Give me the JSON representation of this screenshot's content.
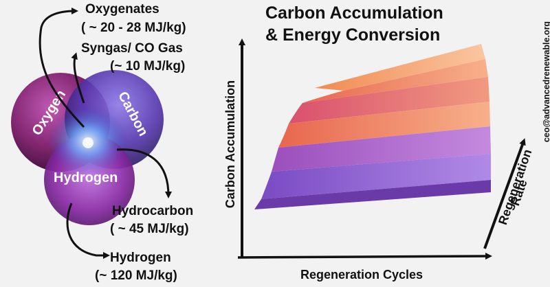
{
  "title": {
    "line1": "Carbon Accumulation",
    "line2": "& Energy Conversion"
  },
  "venn": {
    "oxygen": "Oxygen",
    "carbon": "Carbon",
    "hydrogen": "Hydrogen"
  },
  "products": {
    "oxygenates": {
      "name": "Oxygenates",
      "energy": "( ~ 20 - 28 MJ/kg)"
    },
    "syngas": {
      "name": "Syngas/ CO Gas",
      "energy": "(~ 10 MJ/kg)"
    },
    "hydrocarbon": {
      "name": "Hydrocarbon",
      "energy": "( ~ 45 MJ/kg)"
    },
    "hydrogen": {
      "name": "Hydrogen",
      "energy": "(~ 120 MJ/kg)"
    }
  },
  "axes": {
    "y": "Carbon Accumulation",
    "x": "Regeneration Cycles",
    "z1": "Regeneration",
    "z2": "Rate"
  },
  "contact": {
    "email": "ceo@advancedrenewable.org"
  },
  "colors": {
    "oxygen_circle": "#8a2a7a",
    "carbon_circle": "#5a3fb8",
    "hydrogen_circle": "#8d2fa8",
    "center_glow": "#6fb3ff",
    "surface_purple": "#8f5fd0",
    "surface_orange": "#f08a52"
  }
}
